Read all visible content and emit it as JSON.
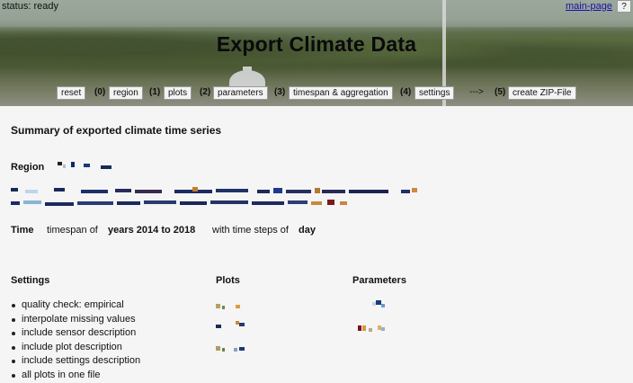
{
  "status": "status: ready",
  "nav": {
    "main_page": "main-page",
    "help": "?"
  },
  "title": "Export Climate Data",
  "steps": {
    "reset": "reset",
    "s0_num": "(0)",
    "s0_label": "region",
    "s1_num": "(1)",
    "s1_label": "plots",
    "s2_num": "(2)",
    "s2_label": "parameters",
    "s3_num": "(3)",
    "s3_label": "timespan & aggregation",
    "s4_num": "(4)",
    "s4_label": "settings",
    "arrow": "--->",
    "s5_num": "(5)",
    "s5_label": "create ZIP-File"
  },
  "summary": {
    "title": "Summary of exported climate time series",
    "region_label": "Region",
    "time_label": "Time",
    "timespan_prefix": "timespan of",
    "timespan_value": "years 2014 to 2018",
    "steps_prefix": "with time steps of",
    "steps_value": "day"
  },
  "settings": {
    "heading": "Settings",
    "items": [
      "quality check: empirical",
      "interpolate missing values",
      "include sensor description",
      "include plot description",
      "include settings description",
      "all plots in one file"
    ]
  },
  "plots": {
    "heading": "Plots"
  },
  "parameters": {
    "heading": "Parameters"
  },
  "colors": {
    "link": "#1a0dab",
    "background": "#f5f5f5"
  }
}
